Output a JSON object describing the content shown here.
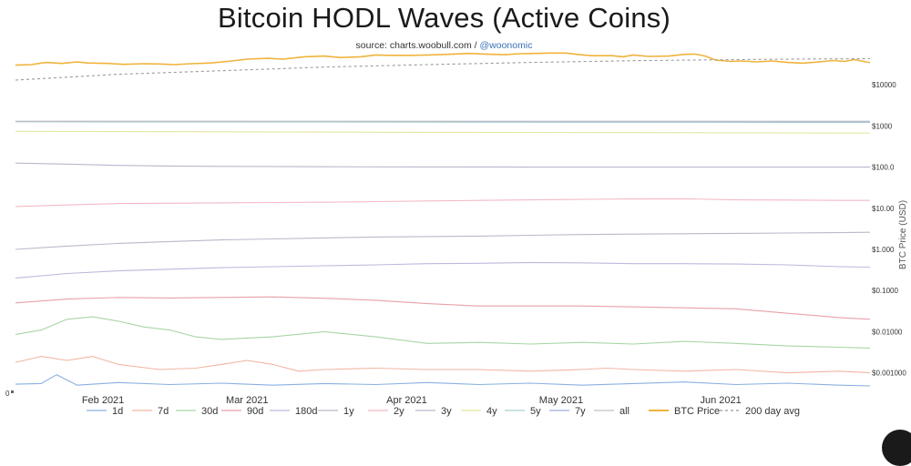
{
  "chart_data": {
    "type": "line",
    "title": "Bitcoin HODL Waves (Active Coins)",
    "subtitle_source": "source: charts.woobull.com /",
    "subtitle_handle": "@woonomic",
    "ylabel": "BTC Price (USD)",
    "y_scale": "log",
    "y_ticks": [
      "$10000",
      "$1000",
      "$100.0",
      "$10.00",
      "$1.000",
      "$0.1000",
      "$0.01000",
      "$0.001000"
    ],
    "y_tick_values": [
      10000,
      1000,
      100,
      10,
      1,
      0.1,
      0.01,
      0.001
    ],
    "ylim": [
      0.00032,
      60000
    ],
    "left_axis_ticks": [
      "0"
    ],
    "x_ticks": [
      "Feb 2021",
      "Mar 2021",
      "Apr 2021",
      "May 2021",
      "Jun 2021"
    ],
    "x_tick_days": [
      17,
      45,
      76,
      106,
      137
    ],
    "x_range_days": [
      0,
      166
    ],
    "legend": [
      "1d",
      "7d",
      "30d",
      "90d",
      "180d",
      "1y",
      "2y",
      "3y",
      "4y",
      "5y",
      "7y",
      "all",
      "BTC Price",
      "200 day avg"
    ],
    "series": [
      {
        "name": "1d",
        "color": "#8ab0e0",
        "points": [
          [
            0,
            0.00053
          ],
          [
            5,
            0.00055
          ],
          [
            8,
            0.0009
          ],
          [
            12,
            0.0005
          ],
          [
            20,
            0.00058
          ],
          [
            30,
            0.00052
          ],
          [
            40,
            0.00056
          ],
          [
            50,
            0.0005
          ],
          [
            60,
            0.00055
          ],
          [
            70,
            0.00052
          ],
          [
            80,
            0.00058
          ],
          [
            90,
            0.00052
          ],
          [
            100,
            0.00056
          ],
          [
            110,
            0.0005
          ],
          [
            120,
            0.00055
          ],
          [
            130,
            0.0006
          ],
          [
            140,
            0.00052
          ],
          [
            150,
            0.00056
          ],
          [
            160,
            0.0005
          ],
          [
            166,
            0.00048
          ]
        ]
      },
      {
        "name": "7d",
        "color": "#f2b6a3",
        "points": [
          [
            0,
            0.0018
          ],
          [
            5,
            0.0025
          ],
          [
            10,
            0.002
          ],
          [
            15,
            0.0025
          ],
          [
            20,
            0.0016
          ],
          [
            28,
            0.0012
          ],
          [
            35,
            0.0013
          ],
          [
            40,
            0.0016
          ],
          [
            45,
            0.002
          ],
          [
            50,
            0.0016
          ],
          [
            55,
            0.0011
          ],
          [
            60,
            0.0012
          ],
          [
            70,
            0.0013
          ],
          [
            80,
            0.0012
          ],
          [
            90,
            0.0012
          ],
          [
            100,
            0.0011
          ],
          [
            110,
            0.0012
          ],
          [
            115,
            0.0013
          ],
          [
            120,
            0.0012
          ],
          [
            130,
            0.0011
          ],
          [
            140,
            0.0012
          ],
          [
            150,
            0.001
          ],
          [
            160,
            0.0011
          ],
          [
            166,
            0.001
          ]
        ]
      },
      {
        "name": "30d",
        "color": "#a8d5a5",
        "points": [
          [
            0,
            0.0085
          ],
          [
            5,
            0.011
          ],
          [
            10,
            0.02
          ],
          [
            15,
            0.023
          ],
          [
            20,
            0.018
          ],
          [
            25,
            0.013
          ],
          [
            30,
            0.011
          ],
          [
            35,
            0.0075
          ],
          [
            40,
            0.0065
          ],
          [
            50,
            0.0075
          ],
          [
            60,
            0.01
          ],
          [
            70,
            0.0075
          ],
          [
            80,
            0.0052
          ],
          [
            90,
            0.0055
          ],
          [
            100,
            0.005
          ],
          [
            110,
            0.0055
          ],
          [
            120,
            0.005
          ],
          [
            130,
            0.0058
          ],
          [
            140,
            0.0052
          ],
          [
            150,
            0.0045
          ],
          [
            160,
            0.0042
          ],
          [
            166,
            0.004
          ]
        ]
      },
      {
        "name": "90d",
        "color": "#e8a1a8",
        "points": [
          [
            0,
            0.05
          ],
          [
            10,
            0.062
          ],
          [
            20,
            0.068
          ],
          [
            30,
            0.066
          ],
          [
            40,
            0.068
          ],
          [
            50,
            0.07
          ],
          [
            60,
            0.065
          ],
          [
            70,
            0.058
          ],
          [
            80,
            0.048
          ],
          [
            90,
            0.042
          ],
          [
            100,
            0.042
          ],
          [
            110,
            0.042
          ],
          [
            120,
            0.04
          ],
          [
            130,
            0.038
          ],
          [
            140,
            0.036
          ],
          [
            150,
            0.028
          ],
          [
            160,
            0.022
          ],
          [
            166,
            0.02
          ]
        ]
      },
      {
        "name": "180d",
        "color": "#bfb8dc",
        "points": [
          [
            0,
            0.2
          ],
          [
            10,
            0.26
          ],
          [
            20,
            0.3
          ],
          [
            30,
            0.33
          ],
          [
            40,
            0.36
          ],
          [
            50,
            0.38
          ],
          [
            60,
            0.4
          ],
          [
            70,
            0.42
          ],
          [
            80,
            0.45
          ],
          [
            90,
            0.46
          ],
          [
            100,
            0.48
          ],
          [
            110,
            0.47
          ],
          [
            120,
            0.45
          ],
          [
            130,
            0.45
          ],
          [
            140,
            0.44
          ],
          [
            150,
            0.42
          ],
          [
            160,
            0.38
          ],
          [
            166,
            0.37
          ]
        ]
      },
      {
        "name": "1y",
        "color": "#b9b9c9",
        "points": [
          [
            0,
            1.0
          ],
          [
            10,
            1.2
          ],
          [
            20,
            1.4
          ],
          [
            30,
            1.55
          ],
          [
            40,
            1.7
          ],
          [
            50,
            1.8
          ],
          [
            60,
            1.9
          ],
          [
            70,
            2.0
          ],
          [
            80,
            2.05
          ],
          [
            90,
            2.1
          ],
          [
            100,
            2.2
          ],
          [
            110,
            2.3
          ],
          [
            120,
            2.35
          ],
          [
            130,
            2.4
          ],
          [
            140,
            2.45
          ],
          [
            150,
            2.5
          ],
          [
            160,
            2.55
          ],
          [
            166,
            2.6
          ]
        ]
      },
      {
        "name": "2y",
        "color": "#f4b9c5",
        "points": [
          [
            0,
            11
          ],
          [
            10,
            12
          ],
          [
            20,
            13
          ],
          [
            30,
            13.2
          ],
          [
            40,
            13.5
          ],
          [
            50,
            13.8
          ],
          [
            60,
            14
          ],
          [
            70,
            14.5
          ],
          [
            80,
            15
          ],
          [
            90,
            15.5
          ],
          [
            100,
            16
          ],
          [
            110,
            16.5
          ],
          [
            120,
            16.8
          ],
          [
            130,
            17
          ],
          [
            140,
            16
          ],
          [
            150,
            15.8
          ],
          [
            160,
            15.5
          ],
          [
            166,
            15.5
          ]
        ]
      },
      {
        "name": "3y",
        "color": "#b7b7cc",
        "points": [
          [
            0,
            125
          ],
          [
            10,
            118
          ],
          [
            20,
            110
          ],
          [
            30,
            106
          ],
          [
            40,
            104
          ],
          [
            60,
            102
          ],
          [
            80,
            101
          ],
          [
            100,
            100
          ],
          [
            120,
            100
          ],
          [
            140,
            100
          ],
          [
            166,
            100
          ]
        ]
      },
      {
        "name": "4y",
        "color": "#e3e6a4",
        "points": [
          [
            0,
            740
          ],
          [
            40,
            720
          ],
          [
            80,
            700
          ],
          [
            120,
            690
          ],
          [
            166,
            670
          ]
        ]
      },
      {
        "name": "5y",
        "color": "#a3d2cf",
        "points": [
          [
            0,
            1260
          ],
          [
            40,
            1250
          ],
          [
            80,
            1240
          ],
          [
            120,
            1230
          ],
          [
            166,
            1220
          ]
        ]
      },
      {
        "name": "7y",
        "color": "#9aaedd",
        "points": [
          [
            0,
            1290
          ],
          [
            40,
            1285
          ],
          [
            80,
            1280
          ],
          [
            120,
            1275
          ],
          [
            166,
            1270
          ]
        ]
      },
      {
        "name": "all",
        "color": "#c3c3c3",
        "points": [
          [
            0,
            1300
          ],
          [
            166,
            1300
          ]
        ]
      },
      {
        "name": "BTC Price",
        "color": "#f0b33c",
        "points": [
          [
            0,
            30000
          ],
          [
            3,
            31000
          ],
          [
            6,
            35000
          ],
          [
            9,
            33000
          ],
          [
            12,
            36000
          ],
          [
            14,
            34000
          ],
          [
            18,
            33000
          ],
          [
            21,
            31500
          ],
          [
            25,
            32500
          ],
          [
            28,
            32000
          ],
          [
            31,
            31000
          ],
          [
            34,
            32500
          ],
          [
            38,
            34000
          ],
          [
            42,
            38000
          ],
          [
            45,
            42000
          ],
          [
            49,
            44000
          ],
          [
            52,
            42000
          ],
          [
            56,
            48000
          ],
          [
            60,
            50000
          ],
          [
            63,
            46000
          ],
          [
            67,
            48000
          ],
          [
            70,
            53000
          ],
          [
            73,
            52000
          ],
          [
            77,
            52000
          ],
          [
            80,
            53000
          ],
          [
            84,
            55000
          ],
          [
            88,
            58000
          ],
          [
            91,
            56000
          ],
          [
            95,
            54000
          ],
          [
            98,
            57000
          ],
          [
            101,
            58000
          ],
          [
            104,
            59000
          ],
          [
            107,
            59000
          ],
          [
            109,
            55000
          ],
          [
            112,
            51000
          ],
          [
            116,
            51000
          ],
          [
            118,
            48000
          ],
          [
            120,
            53000
          ],
          [
            123,
            49000
          ],
          [
            127,
            50000
          ],
          [
            130,
            55000
          ],
          [
            132,
            56000
          ],
          [
            134,
            50000
          ],
          [
            136,
            40000
          ],
          [
            139,
            37000
          ],
          [
            141,
            38000
          ],
          [
            144,
            36000
          ],
          [
            147,
            38000
          ],
          [
            150,
            35000
          ],
          [
            153,
            33500
          ],
          [
            156,
            36000
          ],
          [
            159,
            39000
          ],
          [
            161,
            37000
          ],
          [
            163,
            41000
          ],
          [
            166,
            34500
          ]
        ]
      },
      {
        "name": "200 day avg",
        "color": "#999999",
        "dash": true,
        "points": [
          [
            0,
            13000
          ],
          [
            20,
            18000
          ],
          [
            40,
            22000
          ],
          [
            60,
            27000
          ],
          [
            80,
            31000
          ],
          [
            100,
            35000
          ],
          [
            120,
            38500
          ],
          [
            140,
            41000
          ],
          [
            155,
            42500
          ],
          [
            166,
            43000
          ]
        ]
      }
    ]
  }
}
